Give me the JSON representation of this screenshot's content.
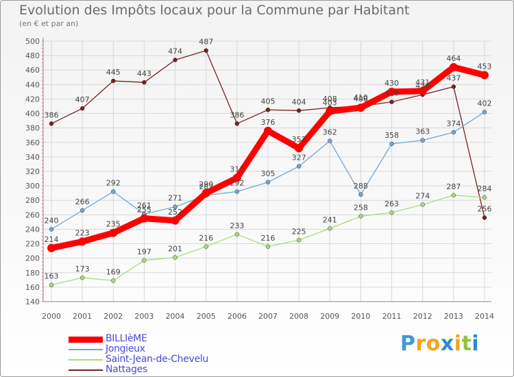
{
  "title": "Evolution des Impôts locaux pour la Commune par Habitant",
  "subtitle": "(en € et par an)",
  "logo": {
    "text": "Proxiti",
    "colors": [
      "#3d9ad6",
      "#f7a21b",
      "#f7a21b",
      "#2b8ccf",
      "#f7a21b",
      "#8cc63f",
      "#2b8ccf"
    ]
  },
  "chart_data": {
    "type": "line",
    "x": [
      2000,
      2001,
      2002,
      2003,
      2004,
      2005,
      2006,
      2007,
      2008,
      2009,
      2010,
      2011,
      2012,
      2013,
      2014
    ],
    "ylim": [
      140,
      500
    ],
    "yticks": [
      140,
      160,
      180,
      200,
      220,
      240,
      260,
      280,
      300,
      320,
      340,
      360,
      380,
      400,
      420,
      440,
      460,
      480,
      500
    ],
    "grid": true,
    "legend_position": "bottom-left",
    "series": [
      {
        "name": "Nattages",
        "color": "#7a1f1f",
        "values": [
          386,
          407,
          445,
          443,
          474,
          487,
          386,
          405,
          404,
          408,
          410,
          416,
          426,
          437,
          256
        ],
        "labels": [
          "386",
          "407",
          "445",
          "443",
          "474",
          "487",
          "386",
          "405",
          "404",
          "408",
          "410",
          "416",
          "426",
          "437",
          "256"
        ]
      },
      {
        "name": "Saint-Jean-de-Chevelu",
        "color": "#a8dc7c",
        "values": [
          163,
          173,
          169,
          197,
          201,
          216,
          233,
          216,
          225,
          241,
          258,
          263,
          274,
          287,
          284
        ],
        "labels": [
          "163",
          "173",
          "169",
          "197",
          "201",
          "216",
          "233",
          "216",
          "225",
          "241",
          "258",
          "263",
          "274",
          "287",
          "284"
        ]
      },
      {
        "name": "Jongieux",
        "color": "#6fa8d6",
        "values": [
          240,
          266,
          292,
          261,
          271,
          287,
          292,
          305,
          327,
          362,
          288,
          358,
          363,
          374,
          402
        ],
        "labels": [
          "240",
          "266",
          "292",
          "261",
          "271",
          "287",
          "292",
          "305",
          "327",
          "362",
          "288",
          "358",
          "363",
          "374",
          "402"
        ]
      },
      {
        "name": "BILLIèME",
        "color": "#ff0000",
        "values": [
          214,
          223,
          235,
          255,
          252,
          290,
          311,
          376,
          352,
          403,
          408,
          430,
          431,
          464,
          453
        ],
        "labels": [
          "214",
          "223",
          "235",
          "255",
          "252",
          "290",
          "311",
          "376",
          "352",
          "403",
          "408",
          "430",
          "431",
          "464",
          "453"
        ]
      }
    ],
    "legend": [
      "BILLIèME",
      "Jongieux",
      "Saint-Jean-de-Chevelu",
      "Nattages"
    ]
  }
}
